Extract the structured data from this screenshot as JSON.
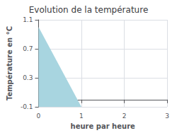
{
  "chart_data": {
    "type": "area",
    "title": "Evolution de la température",
    "xlabel": "heure par heure",
    "ylabel": "Température en °C",
    "x": [
      0,
      0,
      1,
      1
    ],
    "values": [
      1.0,
      -0.1,
      -0.1,
      -0.1
    ],
    "color": "#a8d5e0",
    "xlim": [
      0,
      3
    ],
    "ylim": [
      -0.1,
      1.1
    ],
    "xticks": [
      0,
      1,
      2,
      3
    ],
    "yticks": [
      -0.1,
      0.3,
      0.7,
      1.1
    ],
    "grid": true
  }
}
